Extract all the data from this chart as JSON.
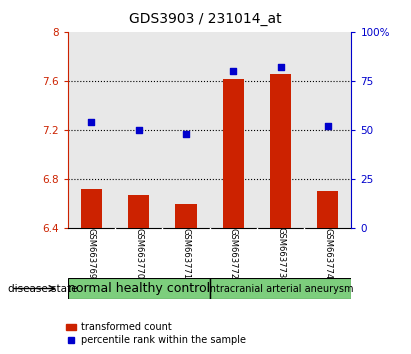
{
  "title": "GDS3903 / 231014_at",
  "samples": [
    "GSM663769",
    "GSM663770",
    "GSM663771",
    "GSM663772",
    "GSM663773",
    "GSM663774"
  ],
  "bar_values": [
    6.72,
    6.67,
    6.6,
    7.62,
    7.66,
    6.7
  ],
  "bar_bottom": 6.4,
  "percentile_values": [
    54,
    50,
    48,
    80,
    82,
    52
  ],
  "bar_color": "#cc2200",
  "dot_color": "#0000cc",
  "ylim_left": [
    6.4,
    8.0
  ],
  "ylim_right": [
    0,
    100
  ],
  "yticks_left": [
    6.4,
    6.8,
    7.2,
    7.6,
    8.0
  ],
  "ytick_labels_left": [
    "6.4",
    "6.8",
    "7.2",
    "7.6",
    "8"
  ],
  "yticks_right": [
    0,
    25,
    50,
    75,
    100
  ],
  "ytick_labels_right": [
    "0",
    "25",
    "50",
    "75",
    "100%"
  ],
  "hlines": [
    6.8,
    7.2,
    7.6
  ],
  "groups": [
    {
      "label": "normal healthy control",
      "start": 0,
      "end": 3,
      "color": "#7dce7d",
      "fontsize": 9
    },
    {
      "label": "intracranial arterial aneurysm",
      "start": 3,
      "end": 6,
      "color": "#7dce7d",
      "fontsize": 7
    }
  ],
  "disease_state_label": "disease state",
  "legend_bar_label": "transformed count",
  "legend_dot_label": "percentile rank within the sample",
  "bar_width": 0.45,
  "background_color": "#ffffff",
  "plot_bg_color": "#e8e8e8",
  "sample_box_color": "#c8c8c8",
  "left_axis_color": "#cc2200",
  "right_axis_color": "#0000cc"
}
